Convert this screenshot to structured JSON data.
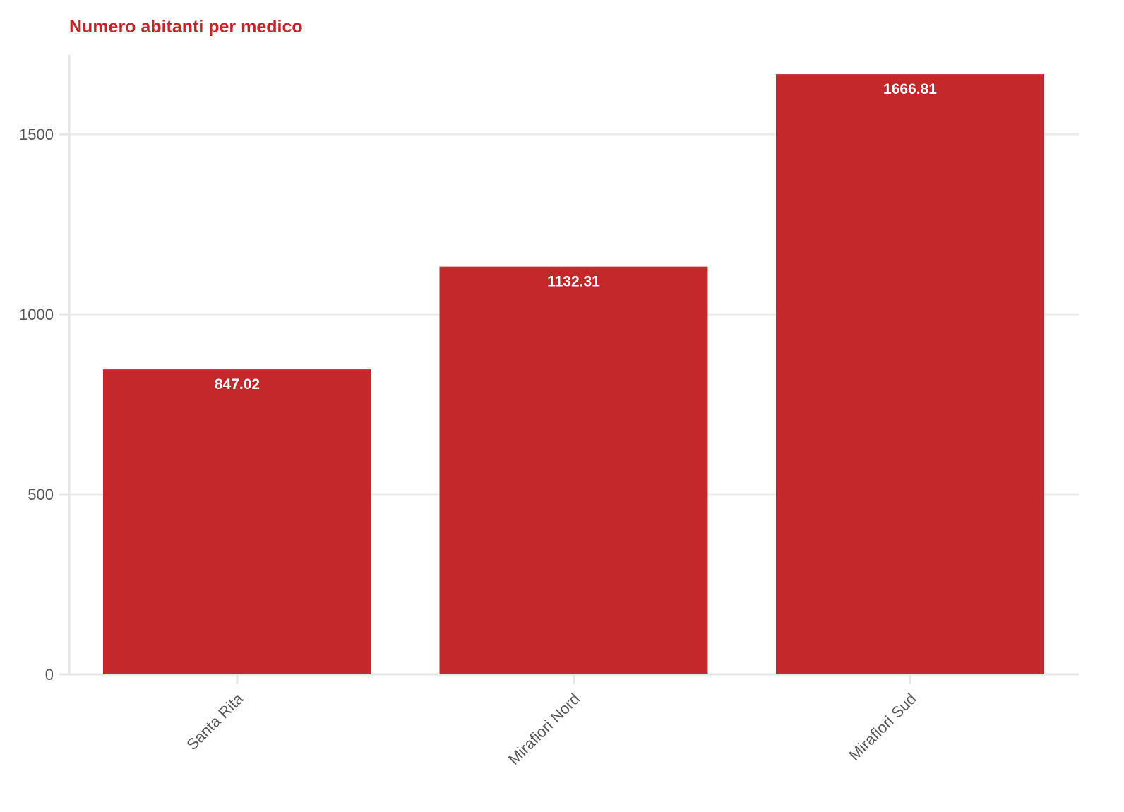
{
  "chart_data": {
    "type": "bar",
    "title": "Numero abitanti per medico",
    "xlabel": "",
    "ylabel": "",
    "categories": [
      "Santa Rita",
      "Mirafiori Nord",
      "Mirafiori Sud"
    ],
    "values": [
      847.02,
      1132.31,
      1666.81
    ],
    "data_labels": [
      "847.02",
      "1132.31",
      "1666.81"
    ],
    "ylim": [
      0,
      1720
    ],
    "yticks": [
      0,
      500,
      1000,
      1500
    ],
    "grid": true,
    "legend": "none",
    "colors": {
      "bar": "#c4282b",
      "title": "#c0252a",
      "grid": "#ebebeb",
      "axis": "#e6e6e6",
      "tick_text": "#555555"
    }
  }
}
